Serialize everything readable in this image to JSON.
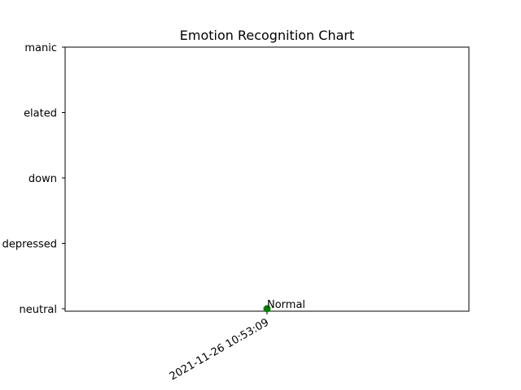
{
  "chart_data": {
    "type": "scatter",
    "title": "Emotion Recognition Chart",
    "xlabel": "",
    "ylabel": "",
    "y_categories": [
      "neutral",
      "depressed",
      "down",
      "elated",
      "manic"
    ],
    "x_ticks": [
      "2021-11-26 10:53:09"
    ],
    "points": [
      {
        "x": "2021-11-26 10:53:09",
        "y": "neutral",
        "label": "Normal",
        "color": "#008000"
      }
    ],
    "grid": false,
    "legend": "none"
  }
}
